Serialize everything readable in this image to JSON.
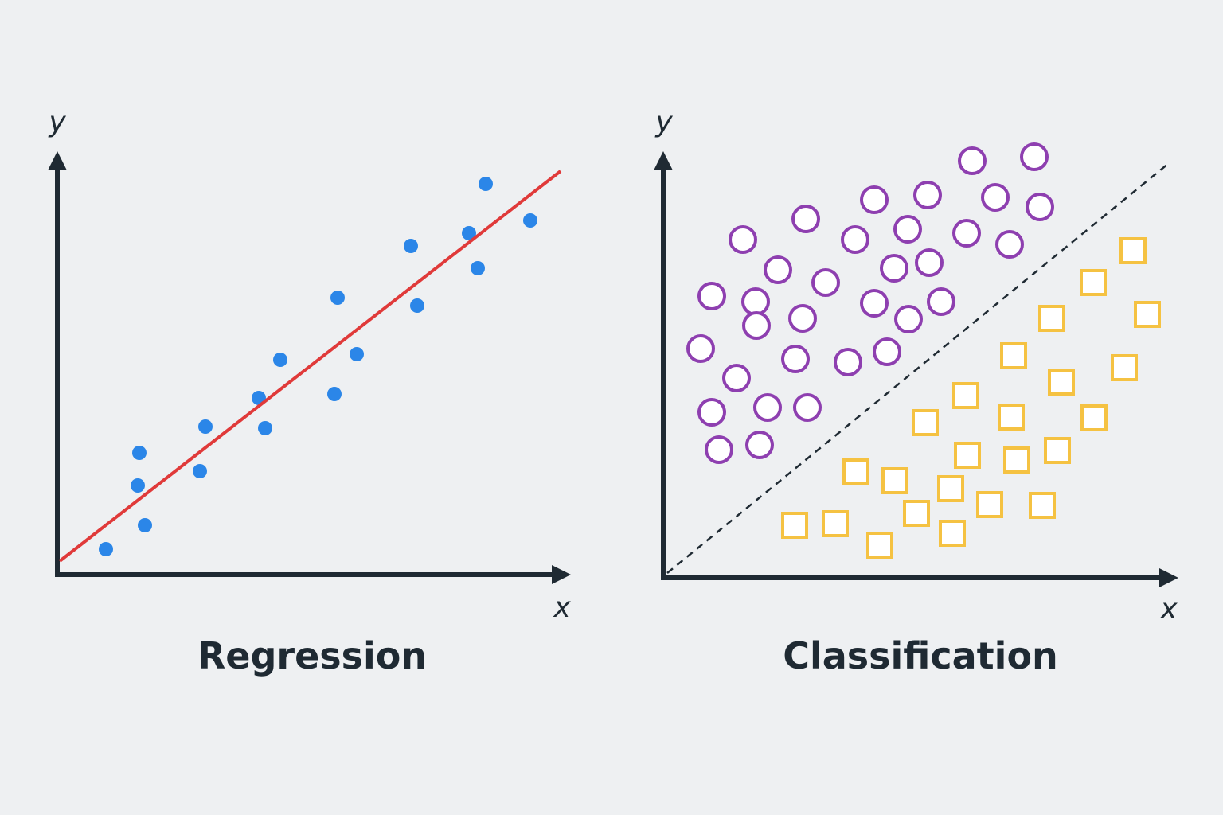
{
  "panels": [
    {
      "title": "Regression",
      "x_label": "x",
      "y_label": "y"
    },
    {
      "title": "Classification",
      "x_label": "x",
      "y_label": "y"
    }
  ]
}
